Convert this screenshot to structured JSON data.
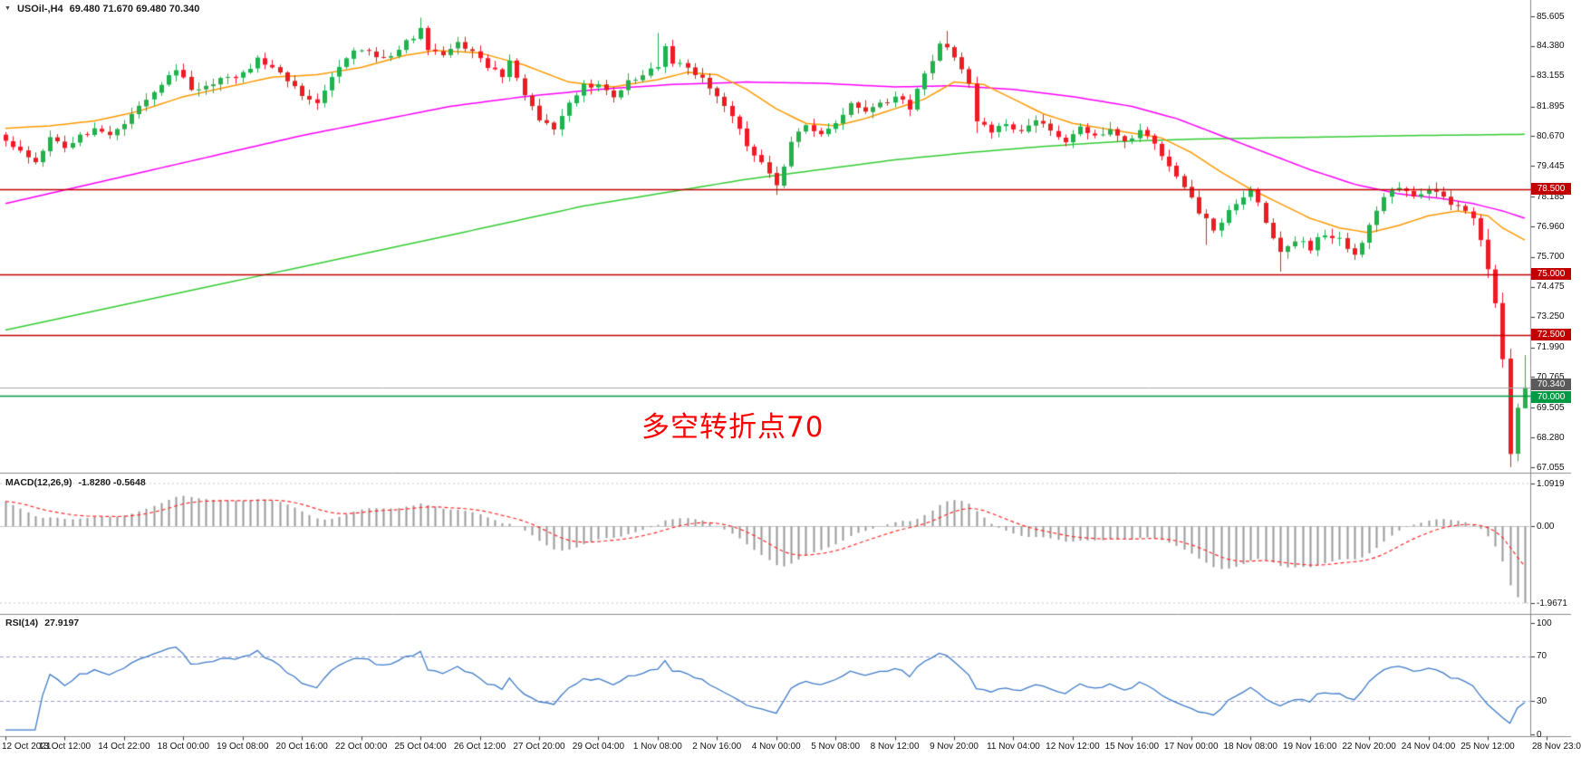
{
  "chart_header": {
    "symbol_period": "USOil-,H4",
    "ohlc": "69.480 71.670 69.480 70.340"
  },
  "annotation": {
    "text": "多空转折点70",
    "color": "#FF0000"
  },
  "price_axis_labels": [
    "85.605",
    "84.380",
    "83.155",
    "81.895",
    "80.670",
    "79.445",
    "78.185",
    "76.960",
    "75.700",
    "74.475",
    "73.250",
    "71.990",
    "70.765",
    "69.505",
    "68.280",
    "67.055"
  ],
  "price_badges": [
    {
      "label": "78.500",
      "value": 78.5,
      "bg": "#C00000",
      "dy": 0
    },
    {
      "label": "75.000",
      "value": 75.0,
      "bg": "#C00000",
      "dy": 0
    },
    {
      "label": "72.500",
      "value": 72.5,
      "bg": "#C00000",
      "dy": 0
    },
    {
      "label": "70.340",
      "value": 70.34,
      "bg": "#5A5A5A",
      "dy": -3
    },
    {
      "label": "70.000",
      "value": 70.0,
      "bg": "#009944",
      "dy": 2
    }
  ],
  "time_axis_labels": [
    "12 Oct 2021",
    "13 Oct 12:00",
    "14 Oct 22:00",
    "18 Oct 00:00",
    "19 Oct 08:00",
    "20 Oct 16:00",
    "22 Oct 00:00",
    "25 Oct 04:00",
    "26 Oct 12:00",
    "27 Oct 20:00",
    "29 Oct 04:00",
    "1 Nov 08:00",
    "2 Nov 16:00",
    "4 Nov 00:00",
    "5 Nov 08:00",
    "8 Nov 12:00",
    "9 Nov 20:00",
    "11 Nov 04:00",
    "12 Nov 12:00",
    "15 Nov 16:00",
    "17 Nov 00:00",
    "18 Nov 08:00",
    "19 Nov 16:00",
    "22 Nov 20:00",
    "24 Nov 04:00",
    "25 Nov 12:00",
    "28 Nov 23:0"
  ],
  "indicators": {
    "macd": {
      "title": "MACD(12,26,9)",
      "values": "-1.8280 -0.5648",
      "axis_labels": [
        {
          "text": "1.0919",
          "value": 1.0919
        },
        {
          "text": "0.00",
          "value": 0
        },
        {
          "text": "-1.9671",
          "value": -1.9671
        }
      ]
    },
    "rsi": {
      "title": "RSI(14)",
      "values": "27.9197",
      "axis_labels": [
        {
          "text": "100",
          "value": 100
        },
        {
          "text": "70",
          "value": 70
        },
        {
          "text": "30",
          "value": 30
        },
        {
          "text": "0",
          "value": 0
        }
      ],
      "level_lines": [
        70,
        30
      ]
    }
  },
  "chart_data": {
    "main": {
      "type": "candlestick",
      "symbol": "USOil-",
      "timeframe": "H4",
      "bars": 206,
      "noise_seed": 20211128,
      "noise_amp": 0.13,
      "y_range": [
        67.055,
        85.605
      ],
      "current_price": 70.34,
      "last_bar": {
        "open": 69.48,
        "high": 71.67,
        "low": 69.48,
        "close": 70.34
      },
      "horizontal_levels": [
        {
          "value": 78.5,
          "kind": "red"
        },
        {
          "value": 75.0,
          "kind": "red"
        },
        {
          "value": 72.5,
          "kind": "red"
        },
        {
          "value": 70.0,
          "kind": "green"
        }
      ],
      "close_keyframes": [
        [
          0,
          80.4
        ],
        [
          2,
          80.0
        ],
        [
          4,
          79.7
        ],
        [
          6,
          80.6
        ],
        [
          8,
          80.2
        ],
        [
          10,
          80.7
        ],
        [
          12,
          81.0
        ],
        [
          14,
          80.6
        ],
        [
          16,
          81.2
        ],
        [
          18,
          81.8
        ],
        [
          20,
          82.4
        ],
        [
          23,
          83.4
        ],
        [
          25,
          82.6
        ],
        [
          28,
          82.9
        ],
        [
          31,
          83.1
        ],
        [
          34,
          83.8
        ],
        [
          37,
          83.2
        ],
        [
          40,
          82.4
        ],
        [
          42,
          82.1
        ],
        [
          44,
          83.2
        ],
        [
          46,
          83.9
        ],
        [
          48,
          84.3
        ],
        [
          50,
          83.8
        ],
        [
          52,
          84.0
        ],
        [
          54,
          84.5
        ],
        [
          56,
          85.1
        ],
        [
          57,
          84.3
        ],
        [
          59,
          84.0
        ],
        [
          61,
          84.6
        ],
        [
          63,
          84.1
        ],
        [
          65,
          83.5
        ],
        [
          67,
          83.2
        ],
        [
          68,
          83.7
        ],
        [
          70,
          82.4
        ],
        [
          72,
          81.4
        ],
        [
          74,
          80.9
        ],
        [
          76,
          82.0
        ],
        [
          78,
          82.7
        ],
        [
          80,
          82.9
        ],
        [
          82,
          82.4
        ],
        [
          84,
          82.9
        ],
        [
          86,
          83.2
        ],
        [
          88,
          83.6
        ],
        [
          89,
          84.4
        ],
        [
          90,
          83.7
        ],
        [
          92,
          83.5
        ],
        [
          94,
          83.1
        ],
        [
          96,
          82.4
        ],
        [
          98,
          81.5
        ],
        [
          100,
          80.3
        ],
        [
          102,
          79.5
        ],
        [
          104,
          78.6
        ],
        [
          106,
          80.4
        ],
        [
          108,
          81.2
        ],
        [
          110,
          80.7
        ],
        [
          112,
          81.3
        ],
        [
          114,
          82.0
        ],
        [
          116,
          81.6
        ],
        [
          118,
          82.0
        ],
        [
          120,
          82.3
        ],
        [
          122,
          81.9
        ],
        [
          124,
          83.2
        ],
        [
          126,
          84.4
        ],
        [
          128,
          84.0
        ],
        [
          130,
          82.9
        ],
        [
          131,
          81.4
        ],
        [
          133,
          80.7
        ],
        [
          135,
          81.3
        ],
        [
          137,
          80.8
        ],
        [
          139,
          81.4
        ],
        [
          141,
          80.9
        ],
        [
          143,
          80.4
        ],
        [
          145,
          81.0
        ],
        [
          147,
          80.6
        ],
        [
          149,
          80.9
        ],
        [
          151,
          80.5
        ],
        [
          153,
          80.9
        ],
        [
          155,
          80.4
        ],
        [
          157,
          79.5
        ],
        [
          159,
          78.6
        ],
        [
          161,
          77.6
        ],
        [
          163,
          76.8
        ],
        [
          165,
          77.6
        ],
        [
          167,
          78.1
        ],
        [
          168,
          78.5
        ],
        [
          170,
          77.2
        ],
        [
          172,
          75.9
        ],
        [
          174,
          76.4
        ],
        [
          176,
          76.1
        ],
        [
          178,
          76.7
        ],
        [
          180,
          76.4
        ],
        [
          182,
          75.9
        ],
        [
          184,
          76.9
        ],
        [
          186,
          78.2
        ],
        [
          188,
          78.5
        ],
        [
          190,
          78.2
        ],
        [
          192,
          78.5
        ],
        [
          194,
          78.1
        ],
        [
          196,
          77.8
        ],
        [
          198,
          77.2
        ],
        [
          199,
          76.4
        ],
        [
          200,
          75.2
        ],
        [
          201,
          73.8
        ],
        [
          202,
          71.5
        ],
        [
          203,
          67.6
        ],
        [
          204,
          69.5
        ],
        [
          205,
          70.34
        ]
      ],
      "wick_overrides": {
        "56": {
          "h": 85.55
        },
        "88": {
          "h": 84.92
        },
        "104": {
          "l": 78.25
        },
        "127": {
          "h": 85.0
        },
        "131": {
          "l": 80.8
        },
        "162": {
          "l": 76.2
        },
        "172": {
          "l": 75.1
        },
        "203": {
          "l": 67.06
        },
        "205": {
          "o": 69.48,
          "h": 71.67,
          "l": 69.48,
          "c": 70.34
        }
      },
      "ma_series": [
        {
          "name": "ma-fast-orange",
          "keyframes": [
            [
              0,
              81.0
            ],
            [
              6,
              81.1
            ],
            [
              12,
              81.3
            ],
            [
              18,
              81.7
            ],
            [
              24,
              82.3
            ],
            [
              30,
              82.7
            ],
            [
              36,
              83.1
            ],
            [
              42,
              83.2
            ],
            [
              48,
              83.5
            ],
            [
              54,
              84.0
            ],
            [
              58,
              84.2
            ],
            [
              64,
              84.1
            ],
            [
              70,
              83.6
            ],
            [
              76,
              82.9
            ],
            [
              82,
              82.7
            ],
            [
              88,
              83.0
            ],
            [
              92,
              83.3
            ],
            [
              96,
              83.2
            ],
            [
              100,
              82.6
            ],
            [
              104,
              81.8
            ],
            [
              108,
              81.2
            ],
            [
              112,
              81.1
            ],
            [
              116,
              81.4
            ],
            [
              120,
              81.8
            ],
            [
              124,
              82.2
            ],
            [
              128,
              82.9
            ],
            [
              132,
              82.8
            ],
            [
              136,
              82.2
            ],
            [
              140,
              81.6
            ],
            [
              144,
              81.2
            ],
            [
              148,
              81.0
            ],
            [
              152,
              80.8
            ],
            [
              156,
              80.6
            ],
            [
              160,
              80.0
            ],
            [
              164,
              79.2
            ],
            [
              168,
              78.5
            ],
            [
              172,
              77.9
            ],
            [
              176,
              77.3
            ],
            [
              180,
              76.9
            ],
            [
              184,
              76.7
            ],
            [
              188,
              77.0
            ],
            [
              192,
              77.4
            ],
            [
              196,
              77.6
            ],
            [
              200,
              77.4
            ],
            [
              202,
              76.9
            ],
            [
              205,
              76.4
            ]
          ]
        },
        {
          "name": "ma-mid-magenta",
          "keyframes": [
            [
              0,
              77.9
            ],
            [
              10,
              78.6
            ],
            [
              20,
              79.3
            ],
            [
              30,
              80.0
            ],
            [
              40,
              80.7
            ],
            [
              50,
              81.3
            ],
            [
              60,
              81.9
            ],
            [
              70,
              82.3
            ],
            [
              80,
              82.6
            ],
            [
              90,
              82.8
            ],
            [
              100,
              82.9
            ],
            [
              110,
              82.85
            ],
            [
              120,
              82.7
            ],
            [
              128,
              82.75
            ],
            [
              136,
              82.6
            ],
            [
              144,
              82.3
            ],
            [
              152,
              81.9
            ],
            [
              158,
              81.4
            ],
            [
              164,
              80.7
            ],
            [
              170,
              80.0
            ],
            [
              176,
              79.3
            ],
            [
              182,
              78.7
            ],
            [
              188,
              78.3
            ],
            [
              194,
              78.1
            ],
            [
              198,
              77.9
            ],
            [
              202,
              77.6
            ],
            [
              205,
              77.3
            ]
          ]
        },
        {
          "name": "ma-slow-green",
          "keyframes": [
            [
              0,
              72.7
            ],
            [
              20,
              74.0
            ],
            [
              40,
              75.3
            ],
            [
              60,
              76.6
            ],
            [
              78,
              77.8
            ],
            [
              90,
              78.4
            ],
            [
              100,
              78.9
            ],
            [
              110,
              79.3
            ],
            [
              120,
              79.7
            ],
            [
              130,
              80.0
            ],
            [
              140,
              80.25
            ],
            [
              150,
              80.45
            ],
            [
              160,
              80.55
            ],
            [
              170,
              80.6
            ],
            [
              180,
              80.65
            ],
            [
              190,
              80.7
            ],
            [
              205,
              80.75
            ]
          ]
        }
      ]
    },
    "macd": {
      "type": "bar",
      "name": "MACD(12,26,9)",
      "current_values": {
        "macd": -1.828,
        "signal": -0.5648
      },
      "y_axis": {
        "max": 1.0919,
        "zero": 0.0,
        "min": -1.9671
      },
      "derived": "EMA12-EMA26 of closes, signal = EMA9 of MACD, histogram rendered as gray bars, signal as red dashed line"
    },
    "rsi": {
      "type": "line",
      "name": "RSI(14)",
      "current_value": 27.9197,
      "levels": [
        70,
        30
      ],
      "range": [
        0,
        100
      ],
      "derived": "Wilder RSI(14) of closes"
    }
  },
  "colors": {
    "up": "#22B14C",
    "down": "#ED1C24",
    "ma_fast": "#FF9900",
    "ma_mid": "#FF00FF",
    "ma_slow": "#33CC33",
    "hline_red": "#C00000",
    "hline_green": "#009944",
    "price_line": "#A6A6A6",
    "macd_hist": "#9A9A9A",
    "macd_signal": "#FF2A2A",
    "rsi_line": "#3E7BC8",
    "rsi_levels": "#9AA0C8",
    "separator": "#8C8C8C",
    "text": "#111111"
  }
}
